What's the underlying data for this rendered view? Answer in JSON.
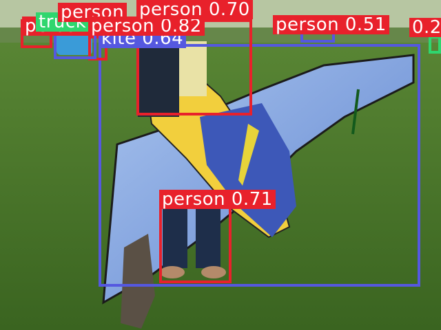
{
  "detections": [
    {
      "text": "person",
      "color": "#e8212b"
    },
    {
      "text": "truck",
      "color": "#2fd66e"
    },
    {
      "text": "person",
      "color": "#e8212b"
    },
    {
      "text": "kite 0.64",
      "color": "#5558e0"
    },
    {
      "text": "person 0.82",
      "color": "#e8212b"
    },
    {
      "text": "person 0.70",
      "color": "#e8212b"
    },
    {
      "text": "person 0.51",
      "color": "#e8212b"
    },
    {
      "text": "0.2",
      "color": "#e8212b"
    },
    {
      "text": "person 0.71",
      "color": "#e8212b"
    }
  ],
  "colors": {
    "person": "#e8212b",
    "kite": "#5558e0",
    "truck": "#2fd66e",
    "label_text": "#ffffff"
  }
}
